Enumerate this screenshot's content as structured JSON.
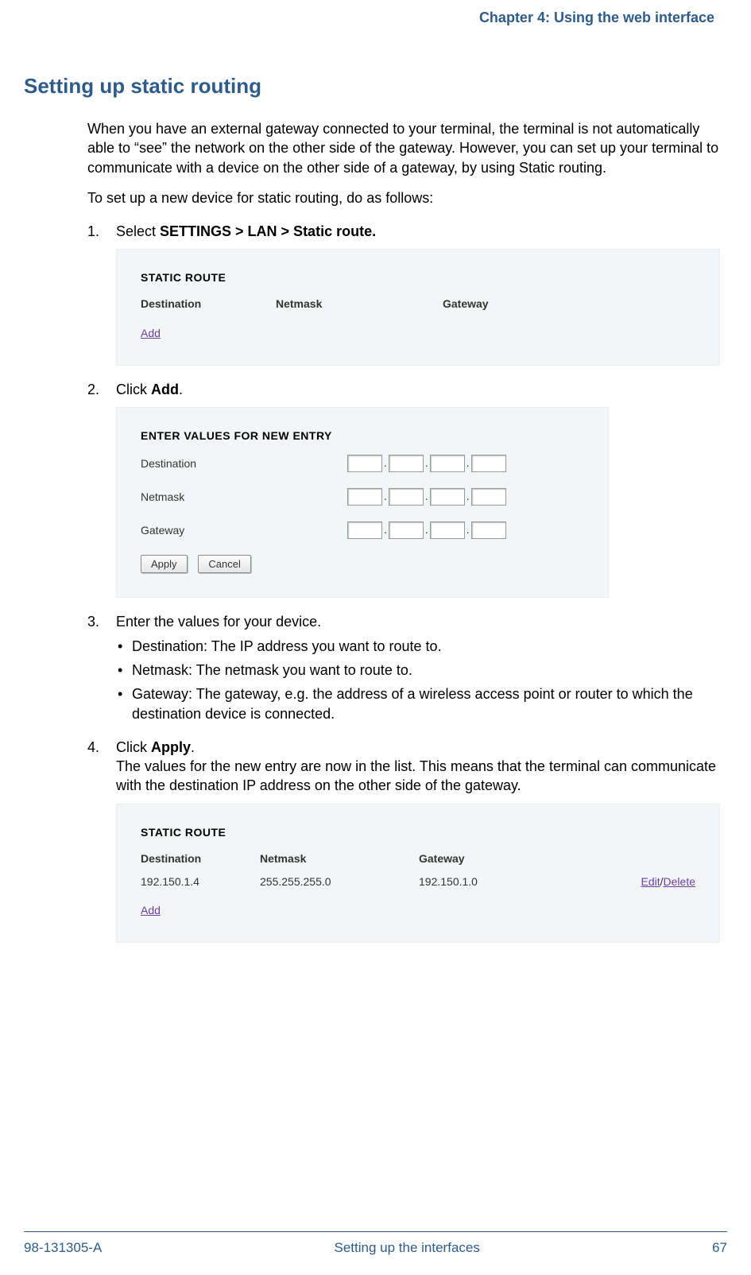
{
  "colors": {
    "header_text": "#2e5b8a",
    "section_title": "#2e5b8a",
    "body_text": "#000000",
    "screenshot_bg": "#f3f6f7",
    "link_purple": "#6b3fa0",
    "footer_text": "#2e5b8a"
  },
  "header": {
    "running": "Chapter 4: Using the web interface"
  },
  "section": {
    "title": "Setting up static routing",
    "intro_1": "When you have an external gateway connected to your terminal, the terminal is not automatically able to “see” the network on the other side of the gateway. However, you can set up your terminal to communicate with a device on the other side of a gateway, by using Static routing.",
    "intro_2": "To set up a new device for static routing, do as follows:"
  },
  "steps": {
    "s1_prefix": "Select ",
    "s1_bold": "SETTINGS > LAN > Static route.",
    "s2_prefix": "Click ",
    "s2_bold": "Add",
    "s2_suffix": ".",
    "s3_text": "Enter the values for your device.",
    "s3_bullets": [
      "Destination: The IP address you want to route to.",
      "Netmask: The netmask you want to route to.",
      "Gateway: The gateway, e.g. the address of a wireless access point or router to which the destination device is connected."
    ],
    "s4_prefix": "Click ",
    "s4_bold": "Apply",
    "s4_suffix": ".",
    "s4_tail": "The values for the new entry are now in the list. This means that the terminal can communicate with the destination IP address on the other side of the gateway."
  },
  "screenshot1": {
    "title": "STATIC ROUTE",
    "col_destination": "Destination",
    "col_netmask": "Netmask",
    "col_gateway": "Gateway",
    "add_link": "Add"
  },
  "screenshot2": {
    "title": "ENTER VALUES FOR NEW ENTRY",
    "label_destination": "Destination",
    "label_netmask": "Netmask",
    "label_gateway": "Gateway",
    "btn_apply": "Apply",
    "btn_cancel": "Cancel",
    "ip_values": {
      "destination": [
        "",
        "",
        "",
        ""
      ],
      "netmask": [
        "",
        "",
        "",
        ""
      ],
      "gateway": [
        "",
        "",
        "",
        ""
      ]
    }
  },
  "screenshot3": {
    "title": "STATIC ROUTE",
    "col_destination": "Destination",
    "col_netmask": "Netmask",
    "col_gateway": "Gateway",
    "row": {
      "destination": "192.150.1.4",
      "netmask": "255.255.255.0",
      "gateway": "192.150.1.0"
    },
    "edit": "Edit",
    "sep": "/",
    "delete": "Delete",
    "add_link": "Add"
  },
  "footer": {
    "doc_id": "98-131305-A",
    "center": "Setting up the interfaces",
    "page": "67"
  }
}
